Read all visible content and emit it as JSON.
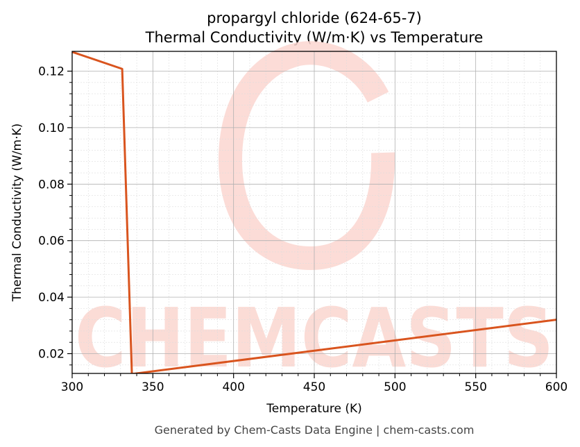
{
  "chart_data": {
    "type": "line",
    "title": "propargyl chloride (624-65-7)",
    "subtitle": "Thermal Conductivity (W/m·K) vs Temperature",
    "xlabel": "Temperature (K)",
    "ylabel": "Thermal Conductivity (W/m·K)",
    "xlim": [
      300,
      600
    ],
    "ylim": [
      0.013,
      0.127
    ],
    "xticks": [
      300,
      350,
      400,
      450,
      500,
      550,
      600
    ],
    "xtick_labels": [
      "300",
      "350",
      "400",
      "450",
      "500",
      "550",
      "600"
    ],
    "yticks": [
      0.02,
      0.04,
      0.06,
      0.08,
      0.1,
      0.12
    ],
    "ytick_labels": [
      "0.02",
      "0.04",
      "0.06",
      "0.08",
      "0.10",
      "0.12"
    ],
    "grid": true,
    "series": [
      {
        "color": "#d9541e",
        "x": [
          300,
          331,
          337,
          600
        ],
        "y": [
          0.1268,
          0.1208,
          0.0128,
          0.032
        ]
      }
    ]
  },
  "watermark": {
    "text": "CHEMCASTS",
    "color": "#fbd6d0"
  },
  "footer": "Generated by Chem-Casts Data Engine | chem-casts.com"
}
